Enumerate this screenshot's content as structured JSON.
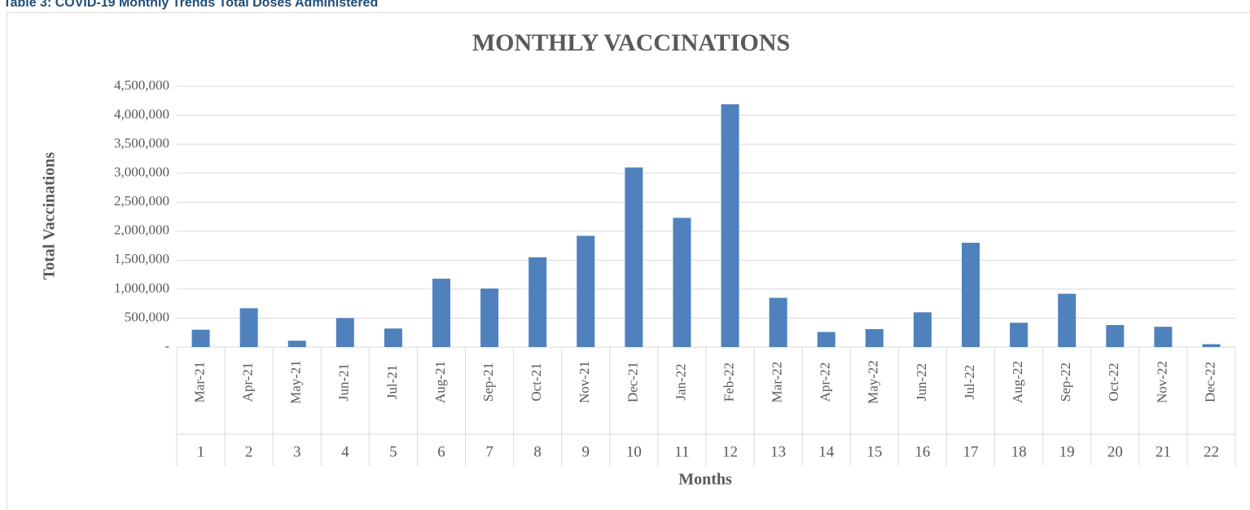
{
  "caption": "Table 3: COVID-19 Monthly Trends Total Doses Administered",
  "chart_data": {
    "type": "bar",
    "title": "MONTHLY VACCINATIONS",
    "x_label": "Months",
    "y_label": "Total Vaccinations",
    "categories": [
      "Mar-21",
      "Apr-21",
      "May-21",
      "Jun-21",
      "Jul-21",
      "Aug-21",
      "Sep-21",
      "Oct-21",
      "Nov-21",
      "Dec-21",
      "Jan-22",
      "Feb-22",
      "Mar-22",
      "Apr-22",
      "May-22",
      "Jun-22",
      "Jul-22",
      "Aug-22",
      "Sep-22",
      "Oct-22",
      "Nov-22",
      "Dec-22"
    ],
    "periods": [
      1,
      2,
      3,
      4,
      5,
      6,
      7,
      8,
      9,
      10,
      11,
      12,
      13,
      14,
      15,
      16,
      17,
      18,
      19,
      20,
      21,
      22
    ],
    "values": [
      300000,
      670000,
      110000,
      500000,
      320000,
      1180000,
      1010000,
      1550000,
      1920000,
      3100000,
      2230000,
      4190000,
      850000,
      260000,
      310000,
      600000,
      1800000,
      420000,
      920000,
      380000,
      350000,
      50000
    ],
    "color": "#4f81bd",
    "ylim": [
      0,
      4500000
    ],
    "yticks": [
      {
        "value": 0,
        "label": "-"
      },
      {
        "value": 500000,
        "label": "500,000"
      },
      {
        "value": 1000000,
        "label": "1,000,000"
      },
      {
        "value": 1500000,
        "label": "1,500,000"
      },
      {
        "value": 2000000,
        "label": "2,000,000"
      },
      {
        "value": 2500000,
        "label": "2,500,000"
      },
      {
        "value": 3000000,
        "label": "3,000,000"
      },
      {
        "value": 3500000,
        "label": "3,500,000"
      },
      {
        "value": 4000000,
        "label": "4,000,000"
      },
      {
        "value": 4500000,
        "label": "4,500,000"
      }
    ],
    "grid": true
  }
}
